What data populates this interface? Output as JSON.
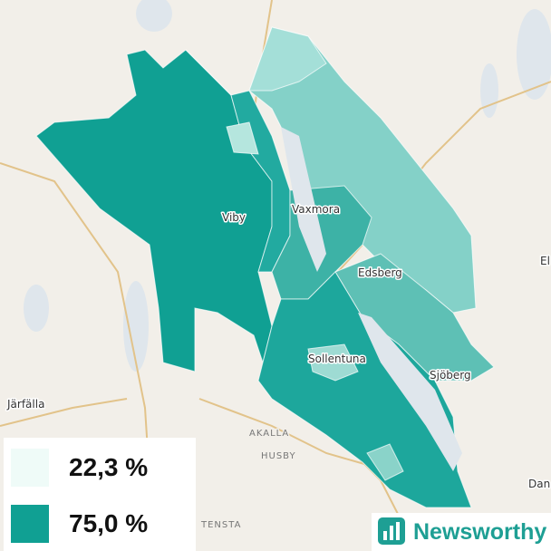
{
  "map": {
    "places": [
      "Viby",
      "Vaxmora",
      "Edsberg",
      "Sollentuna",
      "Sjöberg",
      "Järfälla",
      "AKALLA",
      "HUSBY",
      "TENSTA",
      "Dan",
      "El"
    ],
    "legend": [
      {
        "label": "22,3 %",
        "color": "#effbf8"
      },
      {
        "label": "75,0 %",
        "color": "#10a093"
      }
    ],
    "brand": "Newsworthy"
  }
}
